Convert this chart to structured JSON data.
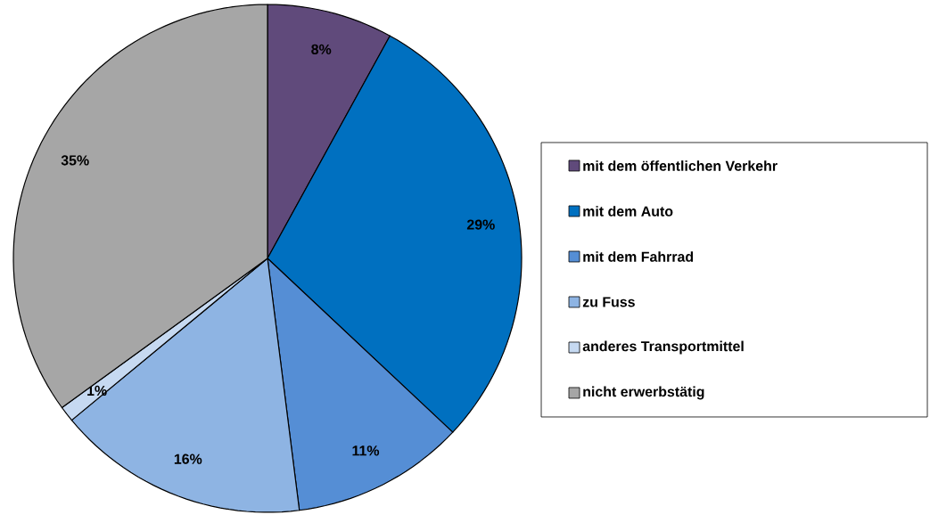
{
  "chart_data": {
    "type": "pie",
    "categories": [
      "mit dem öffentlichen Verkehr",
      "mit dem Auto",
      "mit dem Fahrrad",
      "zu Fuss",
      "anderes Transportmittel",
      "nicht erwerbstätig"
    ],
    "values": [
      8,
      29,
      11,
      16,
      1,
      35
    ],
    "colors": [
      "#604a7b",
      "#0070c0",
      "#558ed5",
      "#8eb4e3",
      "#c6d9f1",
      "#a6a6a6"
    ],
    "value_labels": [
      "8%",
      "29%",
      "11%",
      "16%",
      "1%",
      "35%"
    ],
    "legend": "right"
  }
}
